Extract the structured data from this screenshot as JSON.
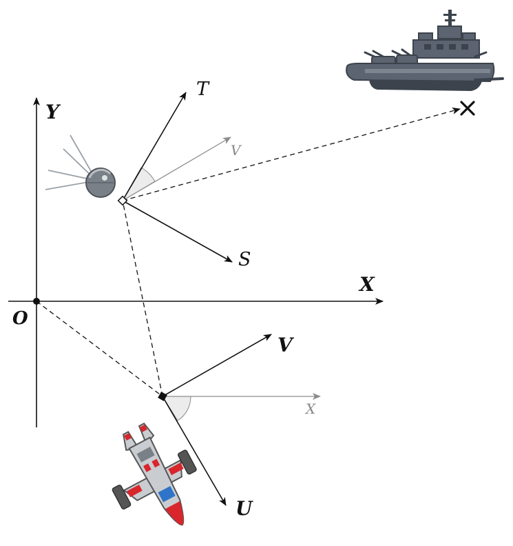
{
  "labels": {
    "world_x": "X",
    "world_y": "Y",
    "origin": "O",
    "fighter_v": "V",
    "fighter_u": "U",
    "fighter_ref_x": "X",
    "sat_t": "T",
    "sat_s": "S",
    "sat_ref_v": "V"
  },
  "colors": {
    "ink": "#111111",
    "reference_gray": "#8c8c8c",
    "angle_fill": "#ececec",
    "ship_hull": "#5b6470",
    "ship_dark": "#3c434c",
    "fighter_body": "#c9ccd1",
    "fighter_red": "#d8262c",
    "fighter_blue": "#2f74c8",
    "satellite_body": "#7a8087"
  },
  "icons": {
    "battleship": "battleship-icon",
    "fighter": "fighter-jet-icon",
    "satellite": "satellite-icon",
    "target": "target-x-marker"
  }
}
